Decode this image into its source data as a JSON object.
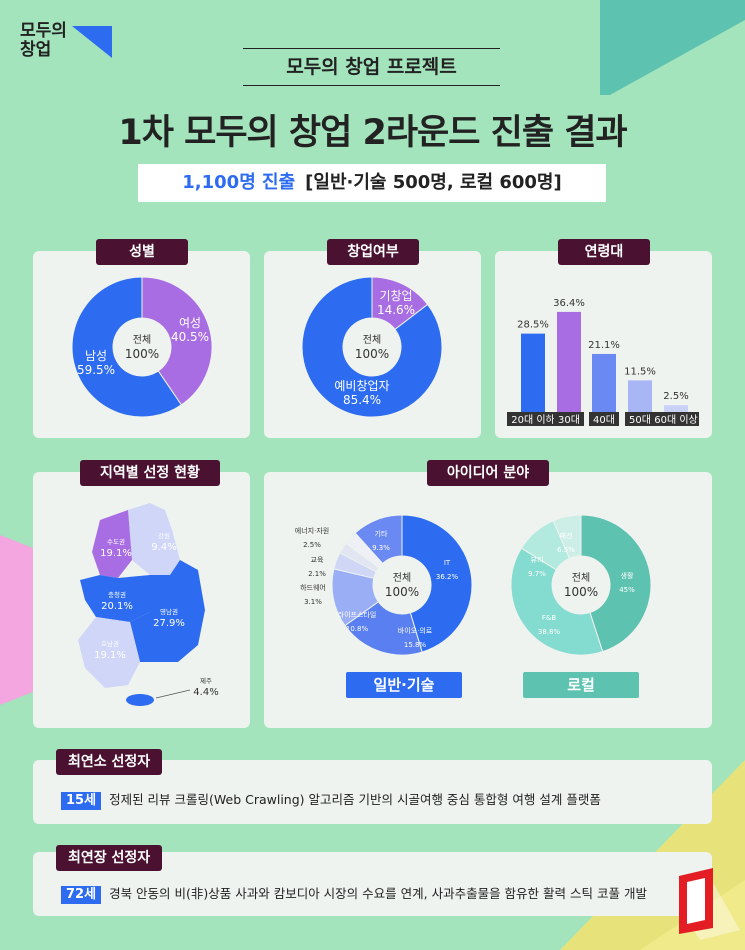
{
  "logo": {
    "line1": "모두의",
    "line2": "창업"
  },
  "subtitle": "모두의 창업 프로젝트",
  "title": "1차 모두의 창업 2라운드 진출 결과",
  "summary": {
    "highlight": "1,100명 진출",
    "detail": "[일반·기술 500명, 로컬 600명]"
  },
  "panels": {
    "gender": "성별",
    "startup": "창업여부",
    "age": "연령대",
    "region": "지역별 선정 현황",
    "idea": "아이디어 분야"
  },
  "center_label": {
    "line1": "전체",
    "line2": "100%"
  },
  "pills": {
    "general": "일반·기술",
    "local": "로컬"
  },
  "colors": {
    "blue": "#2d6cf0",
    "purple": "#a96de3",
    "maroon": "#4a1230",
    "teal": "#5ec2b0",
    "bg": "#a3e4bd"
  },
  "chart_data": [
    {
      "type": "pie",
      "title": "성별",
      "labels": [
        "여성",
        "남성"
      ],
      "values": [
        40.5,
        59.5
      ],
      "value_labels": [
        "40.5%",
        "59.5%"
      ]
    },
    {
      "type": "pie",
      "title": "창업여부",
      "labels": [
        "기창업",
        "예비창업자"
      ],
      "values": [
        14.6,
        85.4
      ],
      "value_labels": [
        "14.6%",
        "85.4%"
      ]
    },
    {
      "type": "bar",
      "title": "연령대",
      "categories": [
        "20대 이하",
        "30대",
        "40대",
        "50대",
        "60대 이상"
      ],
      "values": [
        28.5,
        36.4,
        21.1,
        11.5,
        2.5
      ],
      "value_labels": [
        "28.5%",
        "36.4%",
        "21.1%",
        "11.5%",
        "2.5%"
      ]
    },
    {
      "type": "map",
      "title": "지역별 선정 현황",
      "regions": [
        {
          "name": "수도권",
          "value": 19.1,
          "label": "19.1%"
        },
        {
          "name": "강원",
          "value": 9.4,
          "label": "9.4%"
        },
        {
          "name": "충청권",
          "value": 20.1,
          "label": "20.1%"
        },
        {
          "name": "영남권",
          "value": 27.9,
          "label": "27.9%"
        },
        {
          "name": "호남권",
          "value": 19.1,
          "label": "19.1%"
        },
        {
          "name": "제주",
          "value": 4.4,
          "label": "4.4%"
        }
      ]
    },
    {
      "type": "pie",
      "title": "일반·기술",
      "labels": [
        "IT",
        "바이오·의료",
        "라이프스타일",
        "하드웨어",
        "교육",
        "에너지·자원",
        "기타"
      ],
      "values": [
        36.2,
        15.8,
        10.8,
        3.1,
        2.1,
        2.5,
        9.3
      ],
      "value_labels": [
        "36.2%",
        "15.8%",
        "10.8%",
        "3.1%",
        "2.1%",
        "2.5%",
        "9.3%"
      ]
    },
    {
      "type": "pie",
      "title": "로컬",
      "labels": [
        "생활",
        "F&B",
        "뷰티",
        "패션"
      ],
      "values": [
        45,
        38.8,
        9.7,
        6.5
      ],
      "value_labels": [
        "45%",
        "38.8%",
        "9.7%",
        "6.5%"
      ]
    }
  ],
  "youngest": {
    "tag": "최연소 선정자",
    "age": "15세",
    "text": "정제된 리뷰 크롤링(Web Crawling) 알고리즘 기반의 시골여행 중심 통합형 여행 설계 플랫폼"
  },
  "oldest": {
    "tag": "최연장 선정자",
    "age": "72세",
    "text": "경북 안동의 비(非)상품 사과와 캄보디아 시장의 수요를 연계, 사과추출물을 함유한 활력 스틱 코풀 개발"
  }
}
